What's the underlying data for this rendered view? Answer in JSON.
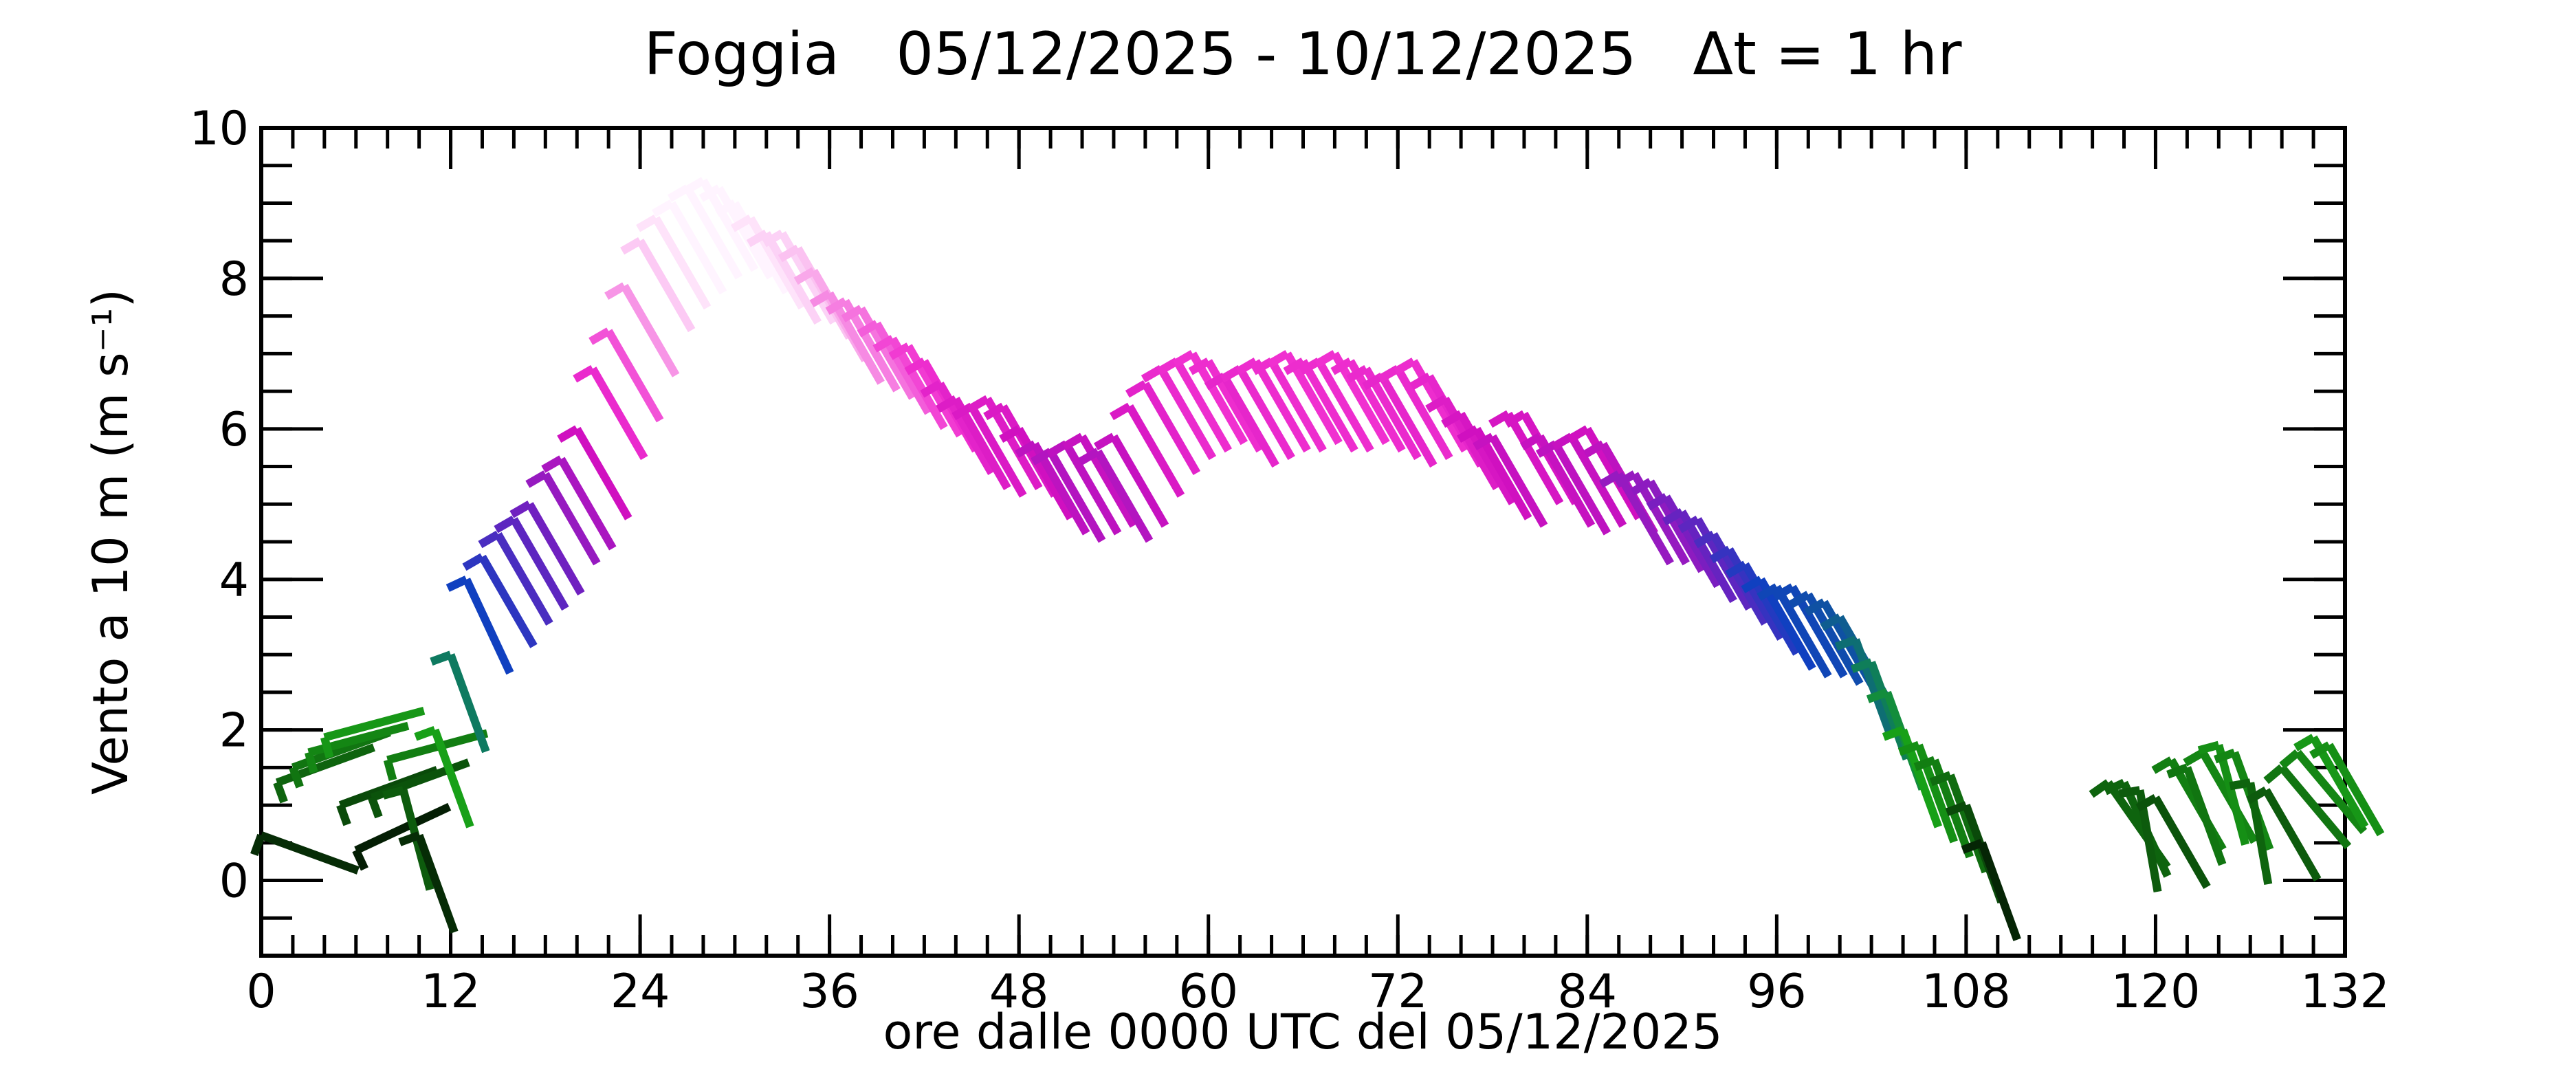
{
  "chart_data": {
    "type": "windbarb",
    "title": "Foggia   05/12/2025 - 10/12/2025   Δt = 1 hr",
    "xlabel": "ore dalle 0000 UTC del 05/12/2025",
    "ylabel": "Vento a 10 m (m s⁻¹)",
    "xlim": [
      0,
      132
    ],
    "xticks": [
      0,
      12,
      24,
      36,
      48,
      60,
      72,
      84,
      96,
      108,
      120,
      132
    ],
    "ylim": [
      -1,
      10
    ],
    "yticks": [
      0,
      2,
      4,
      6,
      8,
      10
    ],
    "colorscale": [
      [
        0,
        "#000000"
      ],
      [
        1,
        "#0a4a0a"
      ],
      [
        2,
        "#18a018"
      ],
      [
        3,
        "#0e7a60"
      ],
      [
        4,
        "#1040c0"
      ],
      [
        5,
        "#7020c0"
      ],
      [
        6,
        "#d010c0"
      ],
      [
        7,
        "#f030d0"
      ],
      [
        8,
        "#f8a0e8"
      ],
      [
        9,
        "#fff4ff"
      ]
    ],
    "x": [
      0,
      1,
      2,
      3,
      4,
      5,
      6,
      7,
      8,
      9,
      10,
      11,
      12,
      13,
      14,
      15,
      16,
      17,
      18,
      19,
      20,
      21,
      22,
      23,
      24,
      25,
      26,
      27,
      28,
      29,
      30,
      31,
      32,
      33,
      34,
      35,
      36,
      37,
      38,
      39,
      40,
      41,
      42,
      43,
      44,
      45,
      46,
      47,
      48,
      49,
      50,
      51,
      52,
      53,
      54,
      55,
      56,
      57,
      58,
      59,
      60,
      61,
      62,
      63,
      64,
      65,
      66,
      67,
      68,
      69,
      70,
      71,
      72,
      73,
      74,
      75,
      76,
      77,
      78,
      79,
      80,
      81,
      82,
      83,
      84,
      85,
      86,
      87,
      88,
      89,
      90,
      91,
      92,
      93,
      94,
      95,
      96,
      97,
      98,
      99,
      100,
      101,
      102,
      103,
      104,
      105,
      106,
      107,
      108,
      109,
      110,
      111,
      112,
      113,
      114,
      115,
      116,
      117,
      118,
      119,
      120,
      121,
      122,
      123,
      124,
      125,
      126,
      127,
      128,
      129,
      130,
      131
    ],
    "values": [
      0.6,
      1.3,
      1.5,
      1.7,
      1.9,
      1.0,
      0.4,
      1.1,
      1.6,
      1.2,
      0.6,
      2.0,
      3.0,
      4.0,
      4.3,
      4.6,
      4.8,
      5.0,
      5.4,
      5.6,
      6.0,
      6.8,
      7.3,
      7.9,
      8.5,
      8.8,
      9.0,
      9.2,
      9.3,
      9.2,
      9.0,
      8.8,
      8.6,
      8.6,
      8.4,
      8.1,
      7.8,
      7.7,
      7.6,
      7.4,
      7.2,
      7.1,
      6.9,
      6.6,
      6.4,
      6.3,
      6.4,
      6.3,
      6.0,
      5.8,
      5.7,
      5.8,
      5.9,
      5.7,
      5.9,
      6.3,
      6.6,
      6.8,
      6.9,
      7.0,
      6.9,
      6.7,
      6.8,
      6.9,
      6.9,
      7.0,
      6.9,
      6.9,
      7.0,
      6.9,
      6.8,
      6.7,
      6.8,
      6.9,
      6.7,
      6.4,
      6.2,
      6.0,
      5.9,
      6.2,
      6.2,
      5.9,
      5.8,
      5.9,
      6.0,
      5.8,
      5.4,
      5.4,
      5.3,
      5.1,
      4.9,
      4.8,
      4.6,
      4.4,
      4.2,
      4.0,
      3.9,
      3.9,
      3.8,
      3.7,
      3.5,
      3.2,
      2.9,
      2.5,
      2.0,
      1.8,
      1.6,
      1.4,
      1.0,
      0.5,
      null,
      null,
      null,
      null,
      null,
      null,
      null,
      1.3,
      1.3,
      1.2,
      1.1,
      1.6,
      1.5,
      1.7,
      1.8,
      1.7,
      1.3,
      1.2,
      1.5,
      1.7,
      1.9,
      1.8
    ],
    "directions": [
      290,
      250,
      250,
      255,
      255,
      250,
      245,
      250,
      255,
      345,
      340,
      340,
      340,
      335,
      330,
      330,
      330,
      330,
      330,
      330,
      330,
      330,
      330,
      330,
      330,
      330,
      330,
      330,
      330,
      330,
      330,
      330,
      330,
      330,
      330,
      330,
      330,
      330,
      330,
      330,
      330,
      330,
      330,
      330,
      330,
      330,
      330,
      330,
      330,
      330,
      330,
      330,
      330,
      330,
      330,
      330,
      330,
      330,
      330,
      330,
      330,
      330,
      330,
      330,
      330,
      330,
      330,
      330,
      330,
      330,
      330,
      330,
      330,
      330,
      330,
      330,
      330,
      330,
      330,
      330,
      330,
      330,
      330,
      330,
      330,
      330,
      330,
      330,
      330,
      330,
      330,
      330,
      330,
      330,
      330,
      330,
      330,
      330,
      330,
      330,
      330,
      340,
      340,
      340,
      340,
      340,
      340,
      340,
      340,
      340,
      null,
      null,
      null,
      null,
      null,
      null,
      null,
      325,
      335,
      350,
      330,
      330,
      340,
      330,
      345,
      340,
      350,
      330,
      320,
      320,
      330,
      330
    ]
  }
}
